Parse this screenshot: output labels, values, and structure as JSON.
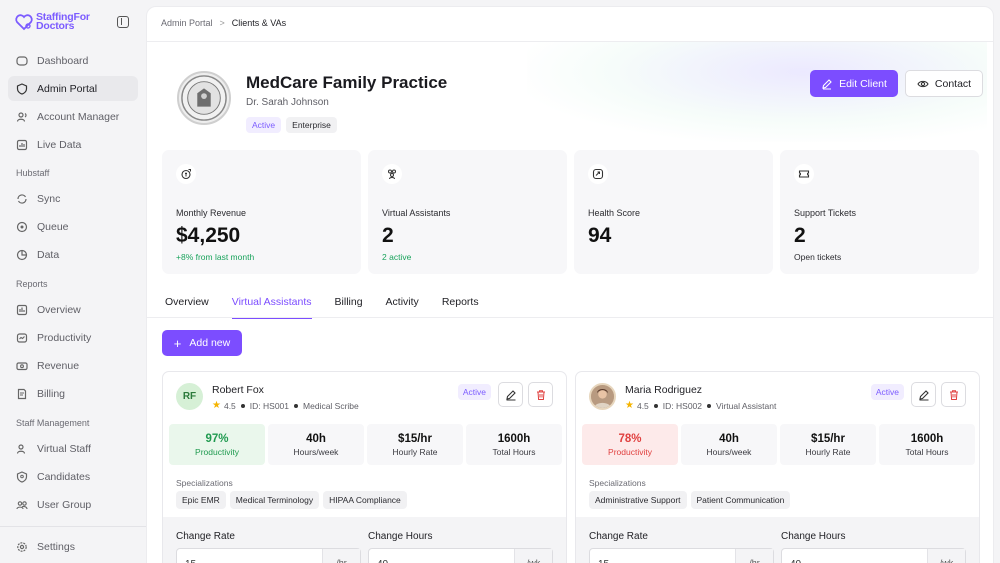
{
  "brand": {
    "name_line1": "StaffingFor",
    "name_line2": "Doctors",
    "accent": "#7c4dff"
  },
  "sidebar": {
    "top_items": [
      {
        "label": "Dashboard",
        "icon": "dashboard-icon"
      },
      {
        "label": "Admin Portal",
        "icon": "shield-icon",
        "active": true
      },
      {
        "label": "Account Manager",
        "icon": "users-icon"
      },
      {
        "label": "Live Data",
        "icon": "chart-icon"
      }
    ],
    "hubstaff_label": "Hubstaff",
    "hubstaff_items": [
      {
        "label": "Sync",
        "icon": "sync-icon"
      },
      {
        "label": "Queue",
        "icon": "queue-icon"
      },
      {
        "label": "Data",
        "icon": "database-icon"
      }
    ],
    "reports_label": "Reports",
    "reports_items": [
      {
        "label": "Overview",
        "icon": "overview-icon"
      },
      {
        "label": "Productivity",
        "icon": "productivity-icon"
      },
      {
        "label": "Revenue",
        "icon": "revenue-icon"
      },
      {
        "label": "Billing",
        "icon": "billing-icon"
      }
    ],
    "staff_label": "Staff Management",
    "staff_items": [
      {
        "label": "Virtual Staff",
        "icon": "users-icon"
      },
      {
        "label": "Candidates",
        "icon": "candidates-icon"
      },
      {
        "label": "User Group",
        "icon": "group-icon"
      }
    ],
    "settings_label": "Settings"
  },
  "breadcrumb": {
    "parent": "Admin Portal",
    "separator": ">",
    "current": "Clients & VAs"
  },
  "client": {
    "name": "MedCare Family Practice",
    "contact": "Dr. Sarah Johnson",
    "status_badge": "Active",
    "tier_badge": "Enterprise",
    "edit_label": "Edit Client",
    "contact_label": "Contact"
  },
  "stats": [
    {
      "label": "Monthly Revenue",
      "value": "$4,250",
      "sub": "+8% from last month",
      "icon": "revenue-icon"
    },
    {
      "label": "Virtual Assistants",
      "value": "2",
      "sub": "2 active",
      "icon": "users-icon"
    },
    {
      "label": "Health Score",
      "value": "94",
      "sub": "",
      "icon": "health-icon"
    },
    {
      "label": "Support Tickets",
      "value": "2",
      "sub": "Open tickets",
      "icon": "ticket-icon"
    }
  ],
  "tabs": [
    "Overview",
    "Virtual Assistants",
    "Billing",
    "Activity",
    "Reports"
  ],
  "add_new_label": "Add new",
  "vas": [
    {
      "initials": "RF",
      "name": "Robert Fox",
      "rating": "4.5",
      "id": "ID: HS001",
      "role": "Medical Scribe",
      "status": "Active",
      "stats": [
        {
          "value": "97%",
          "label": "Productivity"
        },
        {
          "value": "40h",
          "label": "Hours/week"
        },
        {
          "value": "$15/hr",
          "label": "Hourly Rate"
        },
        {
          "value": "1600h",
          "label": "Total Hours"
        }
      ],
      "spec_label": "Specializations",
      "specializations": [
        "Epic EMR",
        "Medical Terminology",
        "HIPAA Compliance"
      ],
      "change_rate_label": "Change Rate",
      "change_rate_value": "15",
      "change_rate_unit": "/hr",
      "change_hours_label": "Change Hours",
      "change_hours_value": "40",
      "change_hours_unit": "/wk"
    },
    {
      "initials": "",
      "name": "Maria Rodriguez",
      "rating": "4.5",
      "id": "ID: HS002",
      "role": "Virtual Assistant",
      "status": "Active",
      "stats": [
        {
          "value": "78%",
          "label": "Productivity"
        },
        {
          "value": "40h",
          "label": "Hours/week"
        },
        {
          "value": "$15/hr",
          "label": "Hourly Rate"
        },
        {
          "value": "1600h",
          "label": "Total Hours"
        }
      ],
      "spec_label": "Specializations",
      "specializations": [
        "Administrative Support",
        "Patient Communication"
      ],
      "change_rate_label": "Change Rate",
      "change_rate_value": "15",
      "change_rate_unit": "/hr",
      "change_hours_label": "Change Hours",
      "change_hours_value": "40",
      "change_hours_unit": "/wk"
    }
  ]
}
